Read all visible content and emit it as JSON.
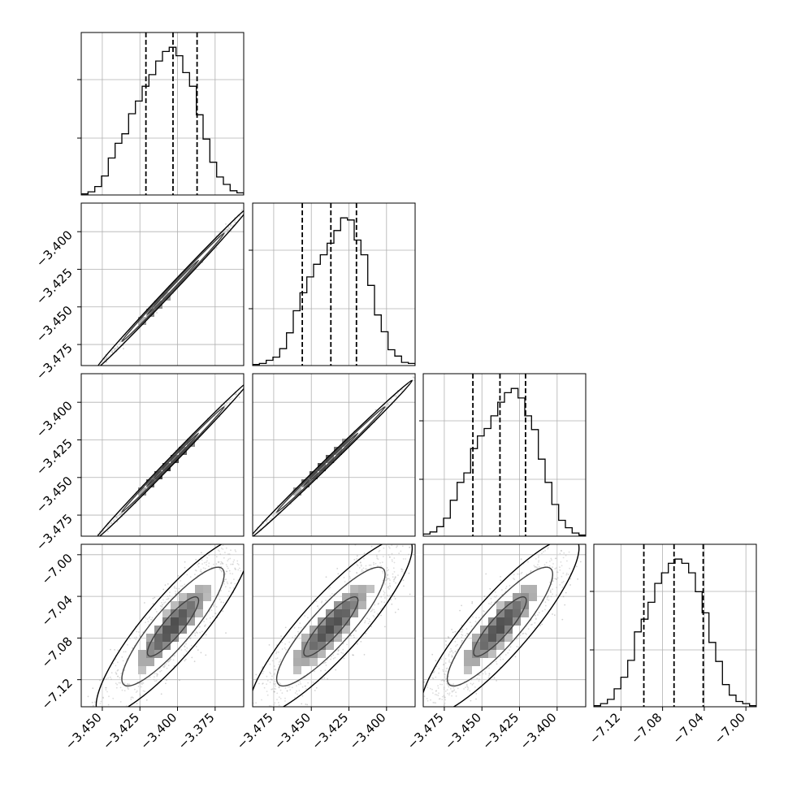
{
  "chart_data": {
    "type": "corner",
    "colors": {
      "ink": "#000000",
      "grid": "#b0b0b0",
      "scatter": "#7f7f7f"
    },
    "grid": true,
    "params": [
      {
        "range": [
          -3.464,
          -3.356
        ],
        "ticks": [
          -3.45,
          -3.425,
          -3.4,
          -3.375
        ],
        "tick_labels": [
          "−3.450",
          "−3.425",
          "−3.400",
          "−3.375"
        ],
        "quantiles": [
          -3.421,
          -3.403,
          -3.387
        ]
      },
      {
        "range": [
          -3.489,
          -3.381
        ],
        "ticks": [
          -3.475,
          -3.45,
          -3.425,
          -3.4
        ],
        "tick_labels": [
          "−3.475",
          "−3.450",
          "−3.425",
          "−3.400"
        ],
        "quantiles": [
          -3.456,
          -3.437,
          -3.42
        ]
      },
      {
        "range": [
          -3.489,
          -3.381
        ],
        "ticks": [
          -3.475,
          -3.45,
          -3.425,
          -3.4
        ],
        "tick_labels": [
          "−3.475",
          "−3.450",
          "−3.425",
          "−3.400"
        ],
        "quantiles": [
          -3.456,
          -3.438,
          -3.421
        ]
      },
      {
        "range": [
          -7.146,
          -6.99
        ],
        "ticks": [
          -7.12,
          -7.08,
          -7.04,
          -7.0
        ],
        "tick_labels": [
          "−7.12",
          "−7.08",
          "−7.04",
          "−7.00"
        ],
        "quantiles": [
          -7.098,
          -7.069,
          -7.041
        ]
      }
    ],
    "row_axes": [
      {
        "ticks": [
          -3.4,
          -3.425,
          -3.45,
          -3.475
        ],
        "tick_labels": [
          "−3.400",
          "−3.425",
          "−3.450",
          "−3.475"
        ]
      },
      {
        "ticks": [
          -3.4,
          -3.425,
          -3.45,
          -3.475
        ],
        "tick_labels": [
          "−3.400",
          "−3.425",
          "−3.450",
          "−3.475"
        ]
      },
      {
        "ticks": [
          -7.0,
          -7.04,
          -7.08,
          -7.12
        ],
        "tick_labels": [
          "−7.00",
          "−7.04",
          "−7.08",
          "−7.12"
        ]
      }
    ],
    "histograms": [
      [
        1,
        3,
        8,
        18,
        35,
        49,
        58,
        77,
        89,
        103,
        114,
        127,
        136,
        140,
        132,
        116,
        103,
        76,
        53,
        31,
        17,
        10,
        4,
        2
      ],
      [
        1,
        2,
        5,
        8,
        16,
        31,
        52,
        69,
        84,
        96,
        105,
        116,
        128,
        140,
        138,
        119,
        105,
        76,
        48,
        32,
        15,
        9,
        3,
        2
      ],
      [
        2,
        4,
        9,
        17,
        34,
        51,
        60,
        83,
        95,
        102,
        114,
        127,
        136,
        140,
        131,
        114,
        101,
        73,
        51,
        30,
        15,
        8,
        3,
        1
      ],
      [
        1,
        3,
        7,
        17,
        28,
        44,
        71,
        83,
        99,
        117,
        127,
        136,
        140,
        136,
        127,
        109,
        89,
        61,
        43,
        21,
        11,
        5,
        3,
        1
      ]
    ],
    "contour_levels": [
      0.393,
      0.865,
      0.989
    ],
    "correlations": {
      "1-0": 0.998,
      "2-0": 0.998,
      "2-1": 0.998,
      "3-0": 0.88,
      "3-1": 0.88,
      "3-2": 0.88
    }
  }
}
